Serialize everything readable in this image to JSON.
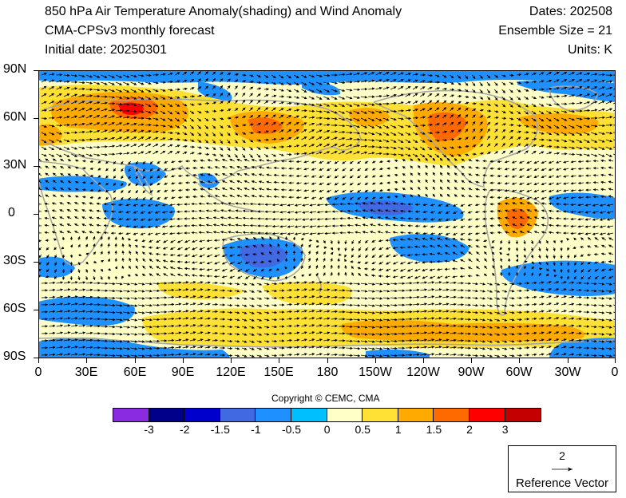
{
  "header": {
    "title_line1": "850 hPa Air Temperature Anomaly(shading) and Wind Anomaly",
    "title_line2": "CMA-CPSv3 monthly forecast",
    "title_line3": "Initial date: 20250301",
    "dates": "Dates: 202508",
    "ensemble": "Ensemble Size = 21",
    "units": "Units: K"
  },
  "map": {
    "lat_labels": [
      "90N",
      "60N",
      "30N",
      "0",
      "30S",
      "60S",
      "90S"
    ],
    "lon_labels": [
      "0",
      "30E",
      "60E",
      "90E",
      "120E",
      "150E",
      "180",
      "150W",
      "120W",
      "90W",
      "60W",
      "30W",
      "0"
    ],
    "coastline_color": "#a6a6a6",
    "vector_color": "#000000"
  },
  "copyright": "Copyright © CEMC, CMA",
  "colorbar": {
    "colors": [
      "#8a2be2",
      "#00008b",
      "#0000cd",
      "#4169e1",
      "#1e90ff",
      "#00bfff",
      "#ffffc8",
      "#ffe135",
      "#ffaa00",
      "#ff6a00",
      "#ff0000",
      "#c40000"
    ],
    "labels": [
      "-3",
      "-2",
      "-1.5",
      "-1",
      "-0.5",
      "0",
      "0.5",
      "1",
      "1.5",
      "2",
      "3"
    ]
  },
  "reference_vector": {
    "magnitude": "2",
    "label": "Reference Vector"
  }
}
